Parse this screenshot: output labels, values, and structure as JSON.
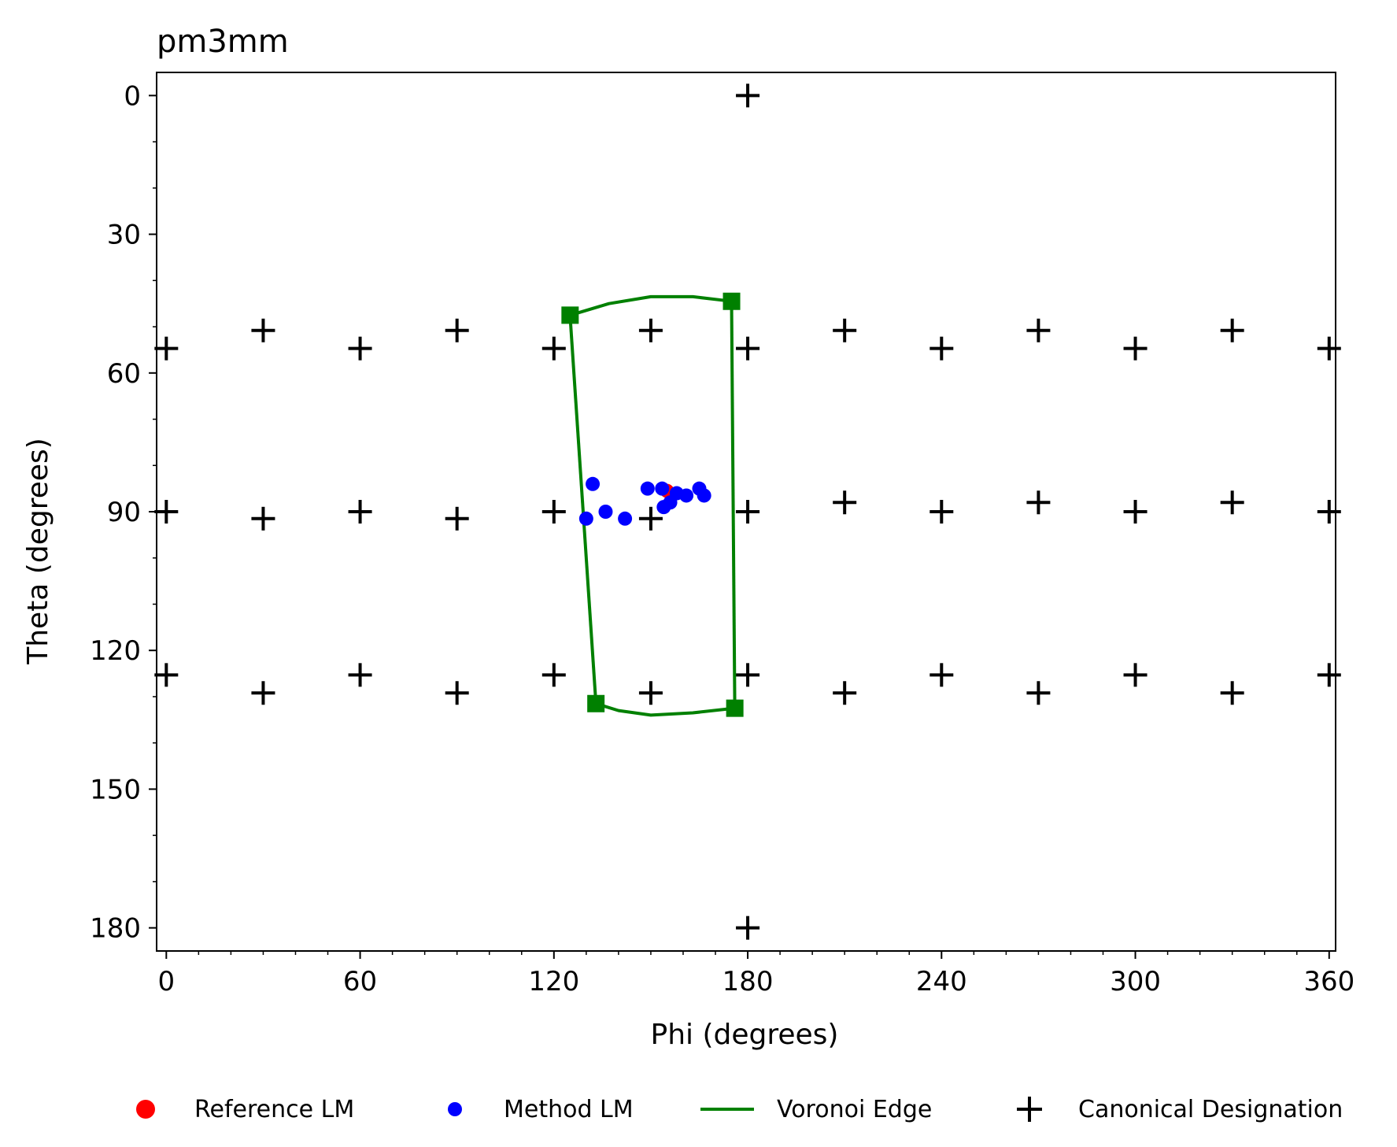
{
  "chart_data": {
    "type": "scatter",
    "title": "pm3mm",
    "xlabel": "Phi (degrees)",
    "ylabel": "Theta (degrees)",
    "xlim": [
      -3,
      362
    ],
    "ylim": [
      185,
      -5
    ],
    "y_inverted": true,
    "xticks": [
      0,
      60,
      120,
      180,
      240,
      300,
      360
    ],
    "xtick_labels": [
      "0",
      "60",
      "120",
      "180",
      "240",
      "300",
      "360"
    ],
    "yticks": [
      0,
      30,
      60,
      90,
      120,
      150,
      180
    ],
    "ytick_labels": [
      "0",
      "30",
      "60",
      "90",
      "120",
      "150",
      "180"
    ],
    "grid": false,
    "legend_position": "bottom-center",
    "legend": [
      {
        "label": "Reference LM",
        "marker": "circle",
        "color": "#ff0000"
      },
      {
        "label": "Method LM",
        "marker": "circle",
        "color": "#0000ff"
      },
      {
        "label": "Voronoi Edge",
        "marker": "line",
        "color": "#008000"
      },
      {
        "label": "Canonical Designation",
        "marker": "plus",
        "color": "#000000"
      }
    ],
    "series": [
      {
        "name": "Reference LM",
        "color": "#ff0000",
        "points": [
          [
            155,
            85.5
          ]
        ]
      },
      {
        "name": "Method LM",
        "color": "#0000ff",
        "points": [
          [
            132,
            84
          ],
          [
            130,
            91.5
          ],
          [
            136,
            90
          ],
          [
            142,
            91.5
          ],
          [
            149,
            85
          ],
          [
            153.5,
            85
          ],
          [
            154,
            89
          ],
          [
            156,
            88
          ],
          [
            158,
            86
          ],
          [
            161,
            86.5
          ],
          [
            165,
            85
          ],
          [
            166.5,
            86.5
          ]
        ]
      },
      {
        "name": "Voronoi Edge",
        "color": "#008000",
        "vertices": [
          [
            125,
            47.5
          ],
          [
            175,
            44.5
          ],
          [
            133,
            131.5
          ],
          [
            176,
            132.5
          ]
        ],
        "edges": [
          [
            [
              125,
              47.5
            ],
            [
              137,
              45
            ],
            [
              150,
              43.5
            ],
            [
              163,
              43.5
            ],
            [
              175,
              44.5
            ]
          ],
          [
            [
              175,
              44.5
            ],
            [
              176,
              132.5
            ]
          ],
          [
            [
              176,
              132.5
            ],
            [
              163,
              133.5
            ],
            [
              150,
              134
            ],
            [
              140,
              133
            ],
            [
              133,
              131.5
            ]
          ],
          [
            [
              133,
              131.5
            ],
            [
              125,
              47.5
            ]
          ]
        ]
      },
      {
        "name": "Canonical Designation",
        "color": "#000000",
        "points": [
          [
            180,
            0
          ],
          [
            180,
            180
          ],
          [
            0,
            54.7
          ],
          [
            30,
            50.8
          ],
          [
            60,
            54.7
          ],
          [
            90,
            50.8
          ],
          [
            120,
            54.7
          ],
          [
            150,
            50.8
          ],
          [
            180,
            54.7
          ],
          [
            210,
            50.8
          ],
          [
            240,
            54.7
          ],
          [
            270,
            50.8
          ],
          [
            300,
            54.7
          ],
          [
            330,
            50.8
          ],
          [
            360,
            54.7
          ],
          [
            0,
            90
          ],
          [
            30,
            91.5
          ],
          [
            60,
            90
          ],
          [
            90,
            91.5
          ],
          [
            120,
            90
          ],
          [
            150,
            91.5
          ],
          [
            180,
            90
          ],
          [
            210,
            88
          ],
          [
            240,
            90
          ],
          [
            270,
            88
          ],
          [
            300,
            90
          ],
          [
            330,
            88
          ],
          [
            360,
            90
          ],
          [
            0,
            125.3
          ],
          [
            30,
            129.2
          ],
          [
            60,
            125.3
          ],
          [
            90,
            129.2
          ],
          [
            120,
            125.3
          ],
          [
            150,
            129.2
          ],
          [
            180,
            125.3
          ],
          [
            210,
            129.2
          ],
          [
            240,
            125.3
          ],
          [
            270,
            129.2
          ],
          [
            300,
            125.3
          ],
          [
            330,
            129.2
          ],
          [
            360,
            125.3
          ]
        ]
      }
    ]
  }
}
